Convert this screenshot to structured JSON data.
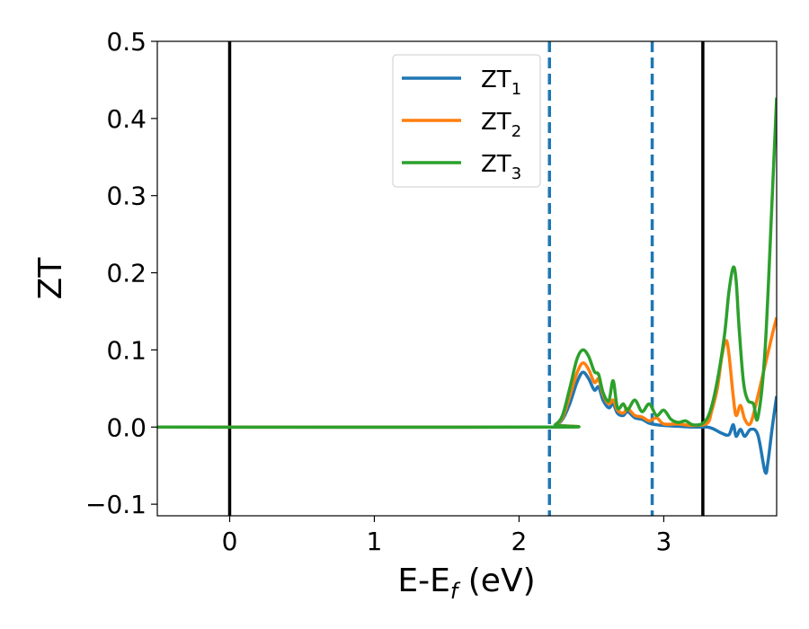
{
  "chart_data": {
    "type": "line",
    "xlabel": "E-E",
    "xlabel_sub": "f",
    "xlabel_unit": " (eV)",
    "ylabel": "ZT",
    "xlim": [
      -0.5,
      3.78
    ],
    "ylim": [
      -0.115,
      0.5
    ],
    "xticks": [
      0,
      1,
      2,
      3
    ],
    "xtick_labels": [
      "0",
      "1",
      "2",
      "3"
    ],
    "yticks": [
      -0.1,
      0.0,
      0.1,
      0.2,
      0.3,
      0.4,
      0.5
    ],
    "ytick_labels": [
      "−0.1",
      "0.0",
      "0.1",
      "0.2",
      "0.3",
      "0.4",
      "0.5"
    ],
    "grid": false,
    "legend_position": "top-center",
    "vlines": [
      {
        "x": 0.0,
        "style": "solid",
        "color": "#000000"
      },
      {
        "x": 2.21,
        "style": "dashed",
        "color": "#1f77b4"
      },
      {
        "x": 2.92,
        "style": "dashed",
        "color": "#1f77b4"
      },
      {
        "x": 3.27,
        "style": "solid",
        "color": "#000000"
      }
    ],
    "series": [
      {
        "name": "ZT",
        "name_sub": "1",
        "color": "#1f77b4",
        "x": [
          -0.5,
          2.2,
          2.25,
          2.3,
          2.35,
          2.4,
          2.44,
          2.48,
          2.52,
          2.55,
          2.58,
          2.62,
          2.65,
          2.68,
          2.72,
          2.75,
          2.8,
          2.85,
          2.9,
          2.95,
          3.0,
          3.1,
          3.2,
          3.3,
          3.35,
          3.4,
          3.45,
          3.48,
          3.5,
          3.53,
          3.56,
          3.6,
          3.65,
          3.7,
          3.72,
          3.75,
          3.78
        ],
        "y": [
          0.0,
          0.0,
          0.002,
          0.01,
          0.03,
          0.058,
          0.071,
          0.063,
          0.048,
          0.052,
          0.035,
          0.025,
          0.03,
          0.018,
          0.015,
          0.02,
          0.012,
          0.01,
          0.005,
          0.003,
          0.002,
          0.001,
          0.0,
          0.0,
          -0.003,
          -0.008,
          -0.01,
          0.003,
          -0.012,
          -0.003,
          -0.012,
          -0.003,
          -0.01,
          -0.058,
          -0.045,
          0.0,
          0.04
        ]
      },
      {
        "name": "ZT",
        "name_sub": "2",
        "color": "#ff7f0e",
        "x": [
          -0.5,
          2.2,
          2.25,
          2.3,
          2.35,
          2.4,
          2.44,
          2.48,
          2.52,
          2.55,
          2.58,
          2.62,
          2.65,
          2.68,
          2.72,
          2.75,
          2.8,
          2.85,
          2.9,
          2.95,
          3.0,
          3.1,
          3.2,
          3.3,
          3.33,
          3.37,
          3.4,
          3.43,
          3.45,
          3.48,
          3.5,
          3.53,
          3.56,
          3.6,
          3.65,
          3.7,
          3.75,
          3.78
        ],
        "y": [
          0.0,
          0.0,
          0.003,
          0.012,
          0.04,
          0.07,
          0.083,
          0.075,
          0.058,
          0.062,
          0.042,
          0.03,
          0.035,
          0.022,
          0.018,
          0.024,
          0.015,
          0.013,
          0.008,
          0.012,
          0.004,
          0.004,
          0.002,
          0.005,
          0.02,
          0.05,
          0.09,
          0.112,
          0.095,
          0.04,
          0.015,
          0.028,
          0.01,
          0.005,
          0.04,
          0.08,
          0.12,
          0.142
        ]
      },
      {
        "name": "ZT",
        "name_sub": "3",
        "color": "#2ca02c",
        "x": [
          -0.5,
          2.2,
          2.25,
          2.3,
          2.35,
          2.4,
          2.44,
          2.48,
          2.52,
          2.55,
          2.58,
          2.62,
          2.65,
          2.68,
          2.72,
          2.75,
          2.8,
          2.85,
          2.9,
          2.95,
          3.0,
          3.05,
          3.1,
          3.15,
          3.2,
          3.27,
          3.32,
          3.37,
          3.42,
          3.45,
          3.48,
          3.5,
          3.52,
          3.55,
          3.58,
          3.62,
          3.65,
          3.7,
          3.75,
          3.78
        ],
        "y": [
          0.0,
          0.0,
          0.003,
          0.015,
          0.05,
          0.088,
          0.1,
          0.092,
          0.072,
          0.068,
          0.045,
          0.034,
          0.06,
          0.025,
          0.03,
          0.022,
          0.035,
          0.02,
          0.03,
          0.015,
          0.022,
          0.01,
          0.006,
          0.008,
          0.003,
          0.005,
          0.02,
          0.06,
          0.12,
          0.175,
          0.207,
          0.19,
          0.13,
          0.06,
          0.035,
          0.03,
          0.012,
          0.1,
          0.3,
          0.427
        ]
      }
    ]
  }
}
